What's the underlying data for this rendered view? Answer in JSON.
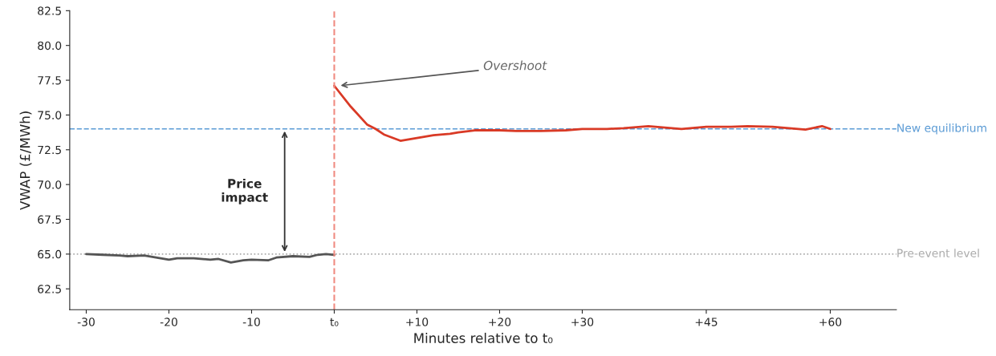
{
  "chart_data": {
    "type": "line",
    "xlabel": "Minutes relative to t₀",
    "ylabel": "VWAP (£/MWh)",
    "series": [
      {
        "color": "#555555",
        "x": [
          -30,
          -28,
          -26,
          -25,
          -23,
          -21,
          -20,
          -19,
          -17,
          -15,
          -14,
          -12.5,
          -11,
          -10,
          -8,
          -7,
          -5,
          -3,
          -2,
          -1,
          0
        ],
        "values": [
          65.0,
          64.95,
          64.9,
          64.85,
          64.9,
          64.7,
          64.6,
          64.7,
          64.7,
          64.6,
          64.65,
          64.4,
          64.55,
          64.6,
          64.55,
          64.75,
          64.85,
          64.8,
          64.95,
          65.0,
          64.95
        ]
      },
      {
        "color": "#d93a26",
        "x": [
          0,
          2,
          4,
          5,
          6,
          8,
          9,
          10,
          12,
          14,
          15,
          17,
          20,
          22,
          25,
          28,
          30,
          33,
          35,
          38,
          40,
          42,
          45,
          48,
          50,
          53,
          55,
          57,
          59,
          60
        ],
        "values": [
          77.1,
          75.6,
          74.3,
          74.0,
          73.6,
          73.15,
          73.25,
          73.35,
          73.55,
          73.65,
          73.75,
          73.9,
          73.9,
          73.85,
          73.85,
          73.9,
          74.0,
          74.0,
          74.05,
          74.2,
          74.1,
          74.0,
          74.15,
          74.15,
          74.2,
          74.15,
          74.05,
          73.95,
          74.2,
          74.0
        ]
      }
    ],
    "xlim": [
      -32,
      68
    ],
    "ylim": [
      61,
      82.5
    ],
    "xticks": [
      -30,
      -20,
      -10,
      {
        "value": 0,
        "label": "t₀"
      },
      {
        "value": 10,
        "label": "+10"
      },
      {
        "value": 20,
        "label": "+20"
      },
      {
        "value": 30,
        "label": "+30"
      },
      {
        "value": 45,
        "label": "+45"
      },
      {
        "value": 60,
        "label": "+60"
      }
    ],
    "yticks": [
      62.5,
      {
        "value": 65,
        "label": "65.0"
      },
      67.5,
      {
        "value": 70,
        "label": "70.0"
      },
      72.5,
      {
        "value": 75,
        "label": "75.0"
      },
      77.5,
      {
        "value": 80,
        "label": "80.0"
      },
      82.5
    ],
    "ref_lines": [
      {
        "axis": "x",
        "value": 0,
        "color": "#f08a80",
        "line_style": "dashed"
      },
      {
        "axis": "y",
        "value": 74,
        "label": "New equilibrium",
        "color": "#5b9bd5",
        "line_style": "dashed"
      },
      {
        "axis": "y",
        "value": 65,
        "label": "Pre-event level",
        "color": "#aaaaaa",
        "line_style": "dotted"
      }
    ],
    "annotations": [
      {
        "text": "Overshoot",
        "x": 0.5,
        "y": 77.1
      },
      "Price\nimpact"
    ],
    "grid": false,
    "legend": false
  }
}
